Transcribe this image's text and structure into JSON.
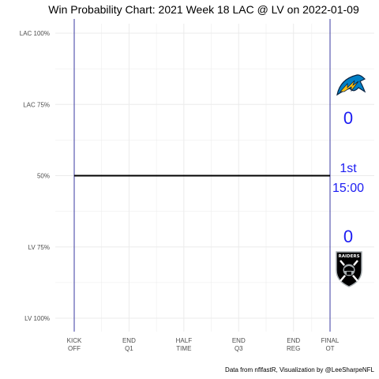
{
  "chart_data": {
    "type": "line",
    "title": "Win Probability Chart: 2021 Week 18 LAC @ LV on 2022-01-09",
    "caption": "Data from nflfastR, Visualization by @LeeSharpeNFL",
    "y_ticks": [
      "LAC 100%",
      "LAC 75%",
      "50%",
      "LV 75%",
      "LV 100%"
    ],
    "y_tick_values": [
      0,
      0.25,
      0.5,
      0.75,
      1.0
    ],
    "ylim": [
      0,
      1
    ],
    "x_ticks": [
      {
        "line1": "KICK",
        "line2": "OFF"
      },
      {
        "line1": "END",
        "line2": "Q1"
      },
      {
        "line1": "HALF",
        "line2": "TIME"
      },
      {
        "line1": "END",
        "line2": "Q3"
      },
      {
        "line1": "END",
        "line2": "REG"
      },
      {
        "line1": "FINAL",
        "line2": "OT"
      }
    ],
    "x_tick_values": [
      0,
      900,
      1800,
      2700,
      3600,
      4200
    ],
    "xlim": [
      0,
      4200
    ],
    "grid": true,
    "series": [
      {
        "x": [
          0,
          4200
        ],
        "y": [
          0.5,
          0.5
        ]
      }
    ],
    "vertical_lines": [
      0,
      4200
    ],
    "teams": {
      "home": "LV",
      "away": "LAC"
    },
    "score": {
      "away": "0",
      "home": "0"
    },
    "clock": {
      "quarter": "1st",
      "time": "15:00"
    },
    "colors": {
      "line": "#000000",
      "vline": "#3a3aa0",
      "score_text": "#1c1cf2",
      "grid": "#ebebeb",
      "chargers_blue": "#0a2342",
      "chargers_gold": "#ffc20e",
      "chargers_powder": "#0080c6",
      "raiders_black": "#000000",
      "raiders_silver": "#a5acaf"
    },
    "icons": {
      "away": "chargers-bolt-icon",
      "home": "raiders-shield-icon"
    }
  }
}
